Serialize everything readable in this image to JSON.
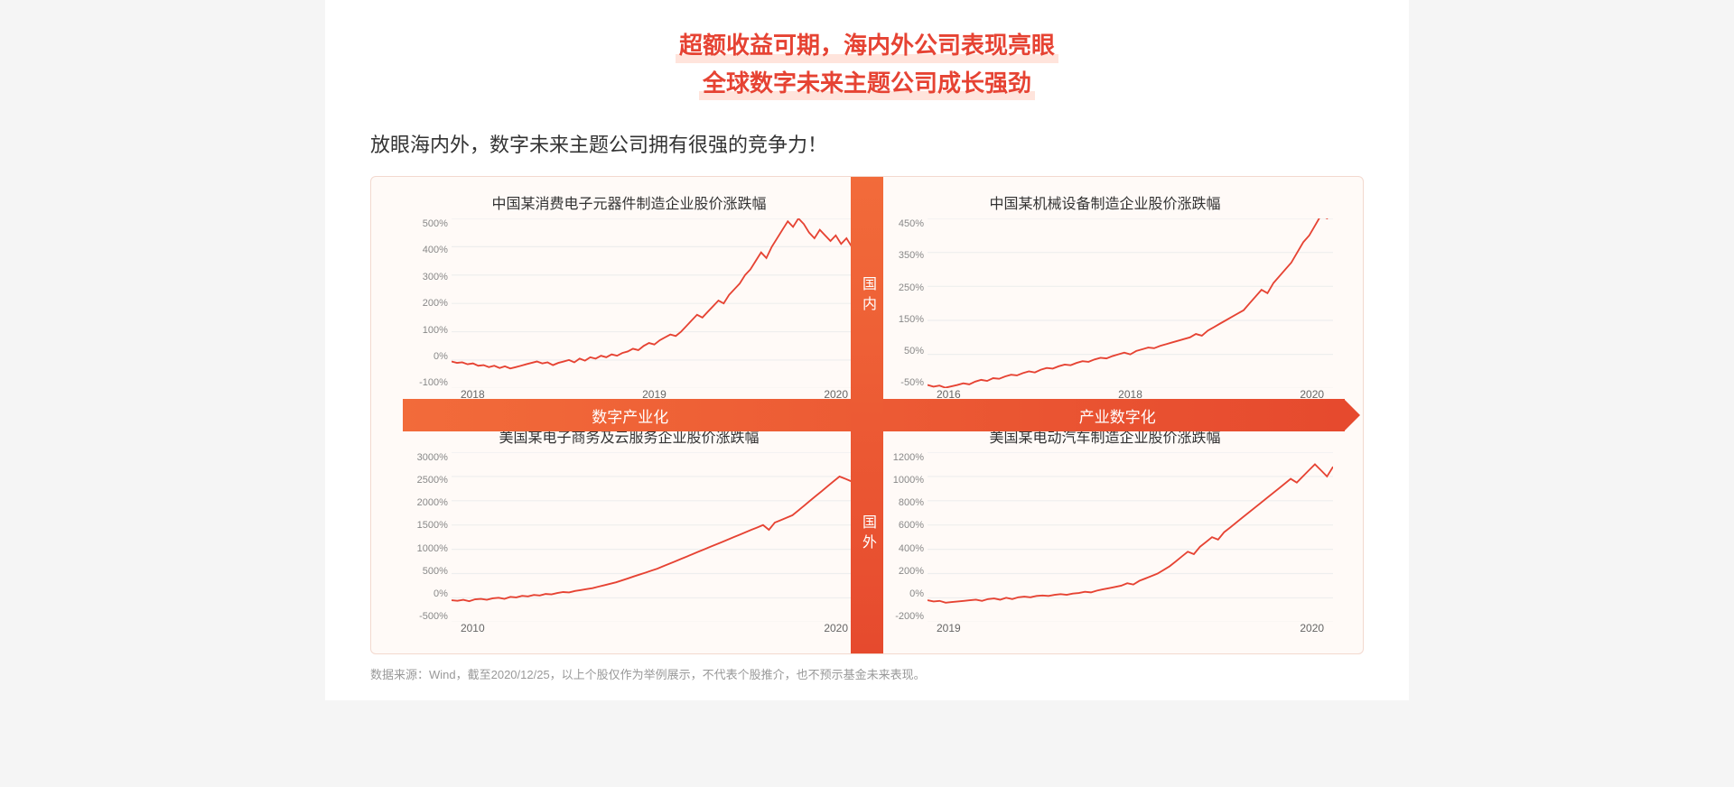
{
  "headline": {
    "line1": "超额收益可期，海内外公司表现亮眼",
    "line2": "全球数字未来主题公司成长强劲",
    "color": "#e64333"
  },
  "subtitle": "放眼海内外，数字未来主题公司拥有很强的竞争力！",
  "axes": {
    "vertical_top_label": "国内",
    "vertical_bottom_label": "国外",
    "horizontal_left_label": "数字产业化",
    "horizontal_right_label": "产业数字化",
    "bar_gradient_from": "#f26b3a",
    "bar_gradient_to": "#e64a2e"
  },
  "charts": {
    "tl": {
      "title": "中国某消费电子元器件制造企业股价涨跌幅",
      "type": "line",
      "line_color": "#e64333",
      "y_ticks": [
        "500%",
        "400%",
        "300%",
        "200%",
        "100%",
        "0%",
        "-100%"
      ],
      "y_min": -100,
      "y_max": 500,
      "x_ticks": [
        "2018",
        "2019",
        "2020"
      ],
      "grid_color": "#eeeeee",
      "data": [
        -5,
        -10,
        -8,
        -15,
        -12,
        -20,
        -18,
        -25,
        -20,
        -28,
        -22,
        -30,
        -25,
        -20,
        -15,
        -10,
        -5,
        -12,
        -8,
        -18,
        -10,
        -5,
        0,
        -8,
        5,
        -2,
        10,
        5,
        15,
        10,
        20,
        15,
        25,
        30,
        40,
        35,
        50,
        60,
        55,
        70,
        80,
        90,
        85,
        100,
        120,
        140,
        160,
        150,
        170,
        190,
        210,
        200,
        230,
        250,
        270,
        300,
        320,
        350,
        380,
        360,
        400,
        430,
        460,
        490,
        470,
        500,
        480,
        450,
        430,
        460,
        440,
        420,
        440,
        410,
        430,
        400,
        420
      ]
    },
    "tr": {
      "title": "中国某机械设备制造企业股价涨跌幅",
      "type": "line",
      "line_color": "#e64333",
      "y_ticks": [
        "450%",
        "350%",
        "250%",
        "150%",
        "50%",
        "-50%"
      ],
      "y_min": -50,
      "y_max": 450,
      "x_ticks": [
        "2016",
        "2018",
        "2020"
      ],
      "grid_color": "#eeeeee",
      "data": [
        -40,
        -45,
        -42,
        -48,
        -44,
        -40,
        -35,
        -38,
        -30,
        -25,
        -28,
        -20,
        -22,
        -15,
        -10,
        -12,
        -5,
        0,
        -3,
        5,
        10,
        8,
        15,
        20,
        18,
        25,
        30,
        28,
        35,
        40,
        38,
        45,
        50,
        55,
        50,
        60,
        65,
        70,
        68,
        75,
        80,
        85,
        90,
        95,
        100,
        110,
        105,
        120,
        130,
        140,
        150,
        160,
        170,
        180,
        200,
        220,
        240,
        230,
        260,
        280,
        300,
        320,
        350,
        380,
        400,
        430,
        460,
        450,
        470
      ]
    },
    "bl": {
      "title": "美国某电子商务及云服务企业股价涨跌幅",
      "type": "line",
      "line_color": "#e64333",
      "y_ticks": [
        "3000%",
        "2500%",
        "2000%",
        "1500%",
        "1000%",
        "500%",
        "0%",
        "-500%"
      ],
      "y_min": -500,
      "y_max": 3000,
      "x_ticks": [
        "2010",
        "2020"
      ],
      "grid_color": "#eeeeee",
      "data": [
        -50,
        -60,
        -40,
        -70,
        -30,
        -20,
        -40,
        -10,
        0,
        -20,
        20,
        10,
        40,
        30,
        60,
        50,
        80,
        70,
        100,
        120,
        110,
        140,
        160,
        180,
        200,
        230,
        260,
        290,
        320,
        360,
        400,
        440,
        480,
        520,
        560,
        600,
        650,
        700,
        750,
        800,
        850,
        900,
        950,
        1000,
        1050,
        1100,
        1150,
        1200,
        1250,
        1300,
        1350,
        1400,
        1450,
        1500,
        1400,
        1550,
        1600,
        1650,
        1700,
        1800,
        1900,
        2000,
        2100,
        2200,
        2300,
        2400,
        2500,
        2450,
        2400,
        2500
      ]
    },
    "br": {
      "title": "美国某电动汽车制造企业股价涨跌幅",
      "type": "line",
      "line_color": "#e64333",
      "y_ticks": [
        "1200%",
        "1000%",
        "800%",
        "600%",
        "400%",
        "200%",
        "0%",
        "-200%"
      ],
      "y_min": -200,
      "y_max": 1200,
      "x_ticks": [
        "2019",
        "2020"
      ],
      "grid_color": "#eeeeee",
      "data": [
        -20,
        -30,
        -25,
        -40,
        -35,
        -30,
        -25,
        -20,
        -15,
        -25,
        -10,
        -5,
        -15,
        0,
        -10,
        5,
        10,
        5,
        15,
        20,
        15,
        25,
        30,
        25,
        35,
        40,
        50,
        45,
        60,
        70,
        80,
        90,
        100,
        120,
        110,
        140,
        160,
        180,
        200,
        230,
        260,
        300,
        340,
        380,
        360,
        420,
        460,
        500,
        480,
        540,
        580,
        620,
        660,
        700,
        740,
        780,
        820,
        860,
        900,
        940,
        980,
        950,
        1000,
        1050,
        1100,
        1050,
        1000,
        1080
      ]
    }
  },
  "footer": "数据来源：Wind，截至2020/12/25，以上个股仅作为举例展示，不代表个股推介，也不预示基金未来表现。"
}
